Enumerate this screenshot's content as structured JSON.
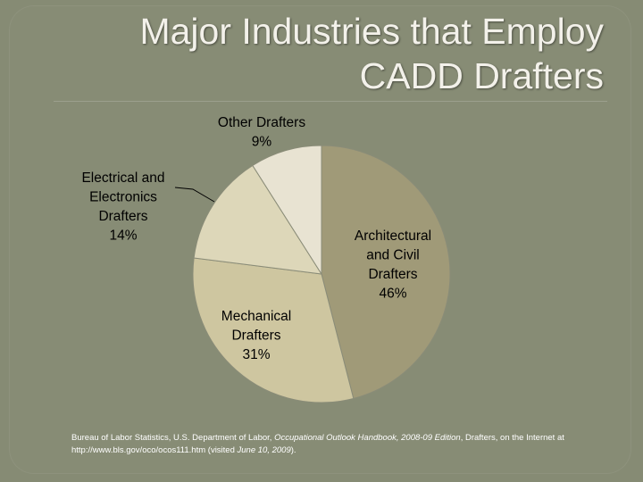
{
  "slide": {
    "title_line1": "Major Industries that Employ",
    "title_line2": "CADD Drafters"
  },
  "chart_data": {
    "type": "pie",
    "title": "",
    "slices": [
      {
        "name": "Architectural and Civil Drafters",
        "label_lines": [
          "Architectural",
          "and Civil",
          "Drafters"
        ],
        "value": 46,
        "pct_label": "46%",
        "color": "#a09a78"
      },
      {
        "name": "Mechanical Drafters",
        "label_lines": [
          "Mechanical",
          "Drafters"
        ],
        "value": 31,
        "pct_label": "31%",
        "color": "#cec6a0"
      },
      {
        "name": "Electrical and Electronics Drafters",
        "label_lines": [
          "Electrical and",
          "Electronics",
          "Drafters"
        ],
        "value": 14,
        "pct_label": "14%",
        "color": "#ddd7b9"
      },
      {
        "name": "Other Drafters",
        "label_lines": [
          "Other Drafters"
        ],
        "value": 9,
        "pct_label": "9%",
        "color": "#e8e3d2"
      }
    ],
    "start_angle_deg": 0,
    "direction": "clockwise",
    "legend": "none"
  },
  "footnote": {
    "part1": "Bureau of Labor Statistics, U.S. Department of Labor, ",
    "italic1": "Occupational Outlook Handbook, 2008-09 Edition",
    "part2": ", Drafters, on the Internet at http://www.bls.gov/oco/ocos111.htm (visited ",
    "italic2": "June 10, 2009",
    "part3": ")."
  }
}
